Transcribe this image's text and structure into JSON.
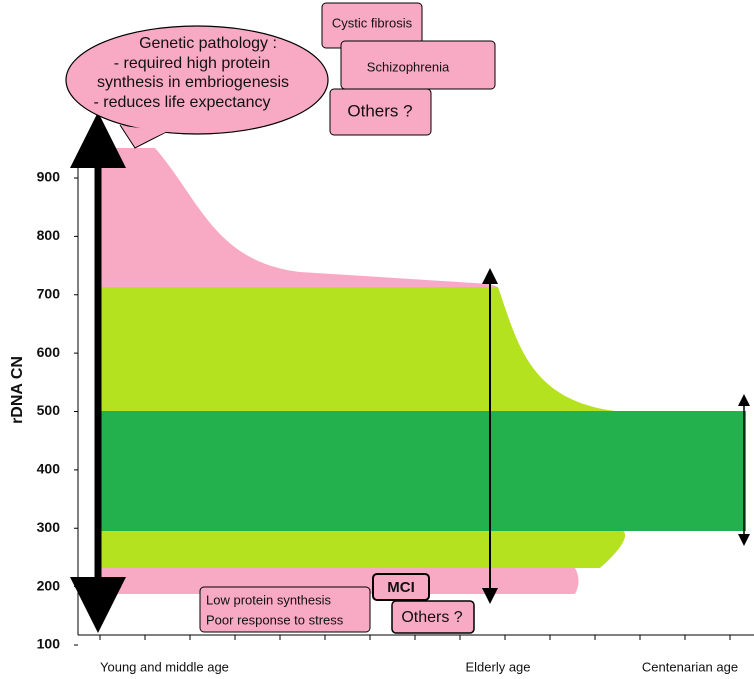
{
  "axis": {
    "label": "rDNA CN",
    "yticks": [
      900,
      800,
      700,
      600,
      500,
      400,
      300,
      200,
      100
    ]
  },
  "x_labels": [
    "Young and middle age",
    "Elderly age",
    "Centenarian age"
  ],
  "callout": {
    "lines": [
      "Genetic pathology :",
      "- required high protein",
      "synthesis in embriogenesis",
      "- reduces life expectancy"
    ]
  },
  "top_boxes": [
    "Cystic fibrosis",
    "Schizophrenia",
    "Others ?"
  ],
  "bottom_box": {
    "lines": [
      "Low protein synthesis",
      "Poor response to stress"
    ]
  },
  "mci": "MCI",
  "bottom_others": "Others ?"
}
